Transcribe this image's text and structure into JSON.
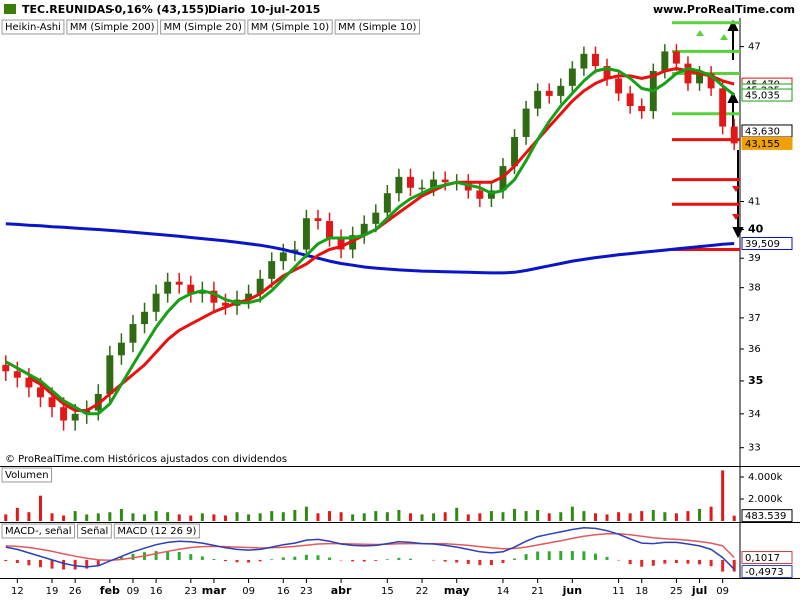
{
  "header": {
    "symbol": "TEC.REUNIDAS",
    "change": "-0,16% (43,155)",
    "period": "Diario",
    "date": "10-jul-2015",
    "source": "www.ProRealTime.com",
    "footnote": "© ProRealTime.com Históricos ajustados con dividendos"
  },
  "chart_data": [
    {
      "type": "candlestick",
      "log": true,
      "ylim": [
        32.5,
        48.2
      ],
      "yticks": [
        33,
        34,
        35,
        36,
        37,
        38,
        39,
        40,
        41,
        47
      ],
      "categories": [
        null,
        "12",
        null,
        null,
        "19",
        null,
        "26",
        null,
        null,
        "feb",
        null,
        "09",
        null,
        "16",
        null,
        null,
        "23",
        null,
        "mar",
        null,
        null,
        "09",
        null,
        null,
        "16",
        null,
        "23",
        null,
        null,
        "abr",
        null,
        null,
        null,
        "15",
        null,
        null,
        "22",
        null,
        null,
        "may",
        null,
        null,
        null,
        "14",
        null,
        null,
        "21",
        null,
        null,
        "jun",
        null,
        null,
        null,
        "11",
        null,
        "18",
        null,
        null,
        "25",
        null,
        "jul",
        null,
        "09",
        null
      ],
      "candles": {
        "name": "Heikin-Ashi",
        "up_color": "#2f6b12",
        "down_color": "#e01818",
        "open": [
          35.5,
          35.3,
          35.1,
          34.8,
          34.5,
          34.2,
          33.8,
          34.0,
          34.1,
          34.6,
          35.8,
          36.2,
          36.8,
          37.2,
          37.8,
          38.2,
          38.1,
          37.8,
          37.9,
          37.5,
          37.4,
          37.6,
          37.8,
          38.3,
          38.9,
          39.2,
          39.3,
          40.4,
          40.3,
          39.7,
          39.3,
          39.8,
          40.2,
          40.6,
          41.3,
          41.9,
          41.5,
          41.5,
          41.8,
          41.7,
          41.7,
          41.4,
          41.1,
          41.4,
          42.3,
          43.4,
          44.5,
          45.2,
          45.0,
          45.4,
          46.1,
          46.7,
          46.2,
          45.7,
          45.1,
          44.6,
          44.4,
          46.0,
          46.8,
          46.3,
          45.5,
          45.9,
          45.3,
          43.8
        ],
        "high": [
          35.8,
          35.6,
          35.4,
          35.1,
          34.8,
          34.5,
          34.3,
          34.4,
          34.9,
          36.1,
          36.5,
          37.1,
          37.5,
          38.1,
          38.5,
          38.5,
          38.4,
          38.2,
          38.2,
          37.8,
          37.9,
          38.1,
          38.6,
          39.2,
          39.5,
          39.6,
          40.7,
          40.7,
          40.6,
          40.0,
          40.1,
          40.5,
          40.9,
          41.6,
          42.2,
          42.2,
          41.8,
          42.1,
          42.1,
          42.0,
          42.0,
          41.7,
          41.7,
          42.6,
          43.7,
          44.8,
          45.5,
          45.5,
          45.7,
          46.4,
          47.0,
          47.0,
          46.5,
          46.0,
          45.4,
          44.9,
          46.3,
          47.1,
          47.1,
          46.6,
          46.2,
          46.2,
          45.6,
          44.1
        ],
        "low": [
          35.0,
          34.8,
          34.5,
          34.2,
          33.9,
          33.5,
          33.5,
          33.7,
          33.8,
          34.3,
          35.5,
          35.9,
          36.5,
          36.9,
          37.5,
          37.8,
          37.5,
          37.5,
          37.2,
          37.1,
          37.1,
          37.3,
          37.5,
          38.0,
          38.6,
          38.9,
          39.0,
          40.0,
          39.4,
          39.0,
          39.0,
          39.5,
          39.9,
          40.3,
          41.0,
          41.2,
          41.2,
          41.2,
          41.4,
          41.4,
          41.1,
          40.8,
          40.8,
          41.1,
          42.0,
          43.1,
          44.2,
          44.7,
          44.7,
          45.1,
          45.8,
          45.9,
          45.4,
          44.8,
          44.3,
          44.1,
          44.1,
          45.7,
          46.0,
          45.2,
          45.2,
          45.0,
          43.5,
          42.9
        ],
        "close": [
          35.3,
          35.1,
          34.8,
          34.5,
          34.2,
          33.8,
          34.0,
          34.1,
          34.6,
          35.8,
          36.2,
          36.8,
          37.2,
          37.8,
          38.2,
          38.1,
          37.8,
          37.9,
          37.5,
          37.4,
          37.6,
          37.8,
          38.3,
          38.9,
          39.2,
          39.3,
          40.4,
          40.3,
          39.7,
          39.3,
          39.8,
          40.2,
          40.6,
          41.3,
          41.9,
          41.5,
          41.5,
          41.8,
          41.7,
          41.7,
          41.4,
          41.1,
          41.4,
          42.3,
          43.4,
          44.5,
          45.2,
          45.0,
          45.4,
          46.1,
          46.7,
          46.2,
          45.7,
          45.1,
          44.6,
          44.4,
          46.0,
          46.8,
          46.3,
          45.5,
          45.9,
          45.3,
          43.8,
          43.155
        ]
      },
      "series": [
        {
          "name": "MM (Simple 200)",
          "color": "#0a14c8",
          "values": [
            40.2,
            40.18,
            40.15,
            40.13,
            40.1,
            40.08,
            40.05,
            40.02,
            40.0,
            39.97,
            39.94,
            39.9,
            39.87,
            39.83,
            39.8,
            39.76,
            39.72,
            39.68,
            39.64,
            39.6,
            39.55,
            39.5,
            39.45,
            39.38,
            39.3,
            39.2,
            39.1,
            39.0,
            38.9,
            38.82,
            38.76,
            38.7,
            38.66,
            38.63,
            38.6,
            38.58,
            38.56,
            38.55,
            38.54,
            38.53,
            38.52,
            38.51,
            38.5,
            38.5,
            38.52,
            38.58,
            38.66,
            38.74,
            38.82,
            38.9,
            38.96,
            39.02,
            39.07,
            39.12,
            39.16,
            39.2,
            39.24,
            39.28,
            39.32,
            39.36,
            39.4,
            39.44,
            39.48,
            39.509
          ]
        },
        {
          "name": "MM (Simple 20)",
          "color": "#e81010",
          "values": [
            null,
            null,
            35.1,
            34.9,
            34.6,
            34.3,
            34.1,
            34.1,
            34.3,
            34.6,
            34.9,
            35.2,
            35.5,
            35.9,
            36.3,
            36.6,
            36.8,
            37.0,
            37.2,
            37.35,
            37.5,
            37.6,
            37.8,
            38.1,
            38.4,
            38.6,
            38.8,
            39.1,
            39.3,
            39.4,
            39.6,
            39.8,
            40.0,
            40.3,
            40.6,
            40.9,
            41.2,
            41.4,
            41.6,
            41.7,
            41.7,
            41.7,
            41.7,
            41.9,
            42.3,
            42.8,
            43.3,
            43.8,
            44.3,
            44.8,
            45.2,
            45.5,
            45.7,
            45.8,
            45.8,
            45.7,
            45.8,
            46.0,
            46.1,
            46.0,
            45.9,
            45.8,
            45.6,
            45.47
          ]
        },
        {
          "name": "MM (Simple 10)",
          "color": "#16a016",
          "values": [
            35.6,
            35.4,
            35.2,
            35.0,
            34.7,
            34.4,
            34.2,
            34.0,
            34.0,
            34.3,
            34.9,
            35.5,
            36.1,
            36.7,
            37.2,
            37.6,
            37.8,
            37.9,
            37.8,
            37.6,
            37.5,
            37.5,
            37.6,
            37.9,
            38.3,
            38.7,
            39.1,
            39.5,
            39.7,
            39.7,
            39.7,
            39.8,
            40.0,
            40.4,
            40.8,
            41.1,
            41.3,
            41.5,
            41.6,
            41.7,
            41.6,
            41.5,
            41.3,
            41.4,
            41.8,
            42.5,
            43.3,
            44.0,
            44.6,
            45.1,
            45.6,
            46.0,
            46.1,
            46.0,
            45.7,
            45.3,
            45.2,
            45.5,
            45.9,
            46.1,
            46.0,
            45.8,
            45.4,
            45.035
          ]
        }
      ],
      "extra_legend": "MM (Simple 10)",
      "levels": [
        {
          "value": 48.0,
          "color": "#5ad23c"
        },
        {
          "value": 46.8,
          "color": "#5ad23c"
        },
        {
          "value": 45.9,
          "color": "#5ad23c"
        },
        {
          "value": 44.3,
          "color": "#5ad23c"
        },
        {
          "value": 43.3,
          "color": "#e81010"
        },
        {
          "value": 41.8,
          "color": "#e81010"
        },
        {
          "value": 40.9,
          "color": "#e81010"
        },
        {
          "value": 39.3,
          "color": "#e81010"
        }
      ],
      "tags": [
        {
          "value": 45.47,
          "label": "45,470",
          "color": "#e81010"
        },
        {
          "value": 45.235,
          "label": "45,235",
          "color": "#16a016"
        },
        {
          "value": 45.035,
          "label": "45,035",
          "color": "#16a016"
        },
        {
          "value": 43.63,
          "label": "43,630",
          "color": "#000000"
        },
        {
          "value": 43.155,
          "label": "43,155",
          "color": "#f0a000"
        },
        {
          "value": 39.509,
          "label": "39,509",
          "color": "#0a14c8"
        }
      ]
    },
    {
      "type": "bar",
      "title": "Volumen",
      "ylim": [
        0,
        4820000
      ],
      "yticks": [
        {
          "value": 2000000,
          "label": "2.000k"
        },
        {
          "value": 4000000,
          "label": "4.000k"
        }
      ],
      "up_color": "#2f8a12",
      "down_color": "#e01818",
      "values": [
        600000,
        1200000,
        800000,
        2300000,
        700000,
        500000,
        900000,
        600000,
        700000,
        800000,
        1100000,
        700000,
        600000,
        900000,
        800000,
        600000,
        500000,
        700000,
        600000,
        500000,
        800000,
        600000,
        700000,
        900000,
        800000,
        1000000,
        1300000,
        700000,
        900000,
        800000,
        600000,
        700000,
        900000,
        800000,
        1000000,
        700000,
        600000,
        700000,
        800000,
        1200000,
        600000,
        700000,
        900000,
        800000,
        1100000,
        900000,
        1000000,
        700000,
        800000,
        1300000,
        900000,
        700000,
        600000,
        800000,
        700000,
        900000,
        1000000,
        800000,
        700000,
        900000,
        1100000,
        1300000,
        4600000,
        483539
      ],
      "tags": [
        {
          "value": 483539,
          "label": "483.539",
          "color": "#000000"
        }
      ]
    },
    {
      "type": "macd",
      "ylim": [
        -0.73,
        1.58
      ],
      "histogram": {
        "name": "MACD-, señal",
        "up_color": "#2faa2f",
        "down_color": "#e02828",
        "values": [
          -0.05,
          -0.13,
          -0.23,
          -0.31,
          -0.37,
          -0.41,
          -0.41,
          -0.37,
          -0.25,
          -0.04,
          0.13,
          0.26,
          0.33,
          0.38,
          0.38,
          0.34,
          0.25,
          0.15,
          0.04,
          -0.05,
          -0.1,
          -0.11,
          -0.06,
          0.03,
          0.11,
          0.14,
          0.22,
          0.2,
          0.1,
          -0.02,
          -0.06,
          -0.07,
          -0.04,
          0.03,
          0.09,
          0.05,
          0.0,
          -0.02,
          -0.07,
          -0.11,
          -0.17,
          -0.22,
          -0.22,
          -0.13,
          0.06,
          0.25,
          0.36,
          0.37,
          0.38,
          0.38,
          0.37,
          0.27,
          0.13,
          -0.02,
          -0.18,
          -0.29,
          -0.25,
          -0.16,
          -0.13,
          -0.16,
          -0.19,
          -0.27,
          -0.5,
          -0.4973
        ]
      },
      "series": [
        {
          "name": "Señal",
          "color": "#e05a5a",
          "values": [
            0.6,
            0.58,
            0.53,
            0.46,
            0.37,
            0.26,
            0.16,
            0.07,
            0.0,
            -0.01,
            0.02,
            0.09,
            0.17,
            0.27,
            0.37,
            0.46,
            0.53,
            0.57,
            0.58,
            0.57,
            0.55,
            0.53,
            0.51,
            0.52,
            0.54,
            0.58,
            0.63,
            0.68,
            0.7,
            0.7,
            0.68,
            0.67,
            0.66,
            0.67,
            0.69,
            0.7,
            0.7,
            0.7,
            0.69,
            0.66,
            0.62,
            0.57,
            0.52,
            0.48,
            0.49,
            0.55,
            0.64,
            0.73,
            0.82,
            0.92,
            1.01,
            1.08,
            1.12,
            1.12,
            1.08,
            1.01,
            0.95,
            0.91,
            0.88,
            0.84,
            0.79,
            0.72,
            0.6,
            0.1017
          ]
        },
        {
          "name": "MACD (12 26 9)",
          "color": "#2a3fb8",
          "values": [
            0.55,
            0.45,
            0.3,
            0.15,
            0.0,
            -0.15,
            -0.25,
            -0.3,
            -0.25,
            -0.05,
            0.15,
            0.35,
            0.5,
            0.65,
            0.75,
            0.8,
            0.78,
            0.72,
            0.62,
            0.52,
            0.45,
            0.42,
            0.45,
            0.55,
            0.65,
            0.72,
            0.85,
            0.88,
            0.8,
            0.68,
            0.62,
            0.6,
            0.62,
            0.7,
            0.78,
            0.75,
            0.7,
            0.68,
            0.62,
            0.55,
            0.45,
            0.35,
            0.3,
            0.35,
            0.55,
            0.8,
            1.0,
            1.1,
            1.2,
            1.3,
            1.38,
            1.35,
            1.25,
            1.1,
            0.9,
            0.72,
            0.7,
            0.75,
            0.75,
            0.68,
            0.6,
            0.45,
            0.1,
            -0.3956
          ]
        }
      ],
      "tags": [
        {
          "value": 0.1017,
          "label": "0,1017",
          "color": "#c83c3c"
        },
        {
          "value": -0.4973,
          "label": "-0,4973",
          "color": "#2a3fb8"
        }
      ]
    }
  ]
}
